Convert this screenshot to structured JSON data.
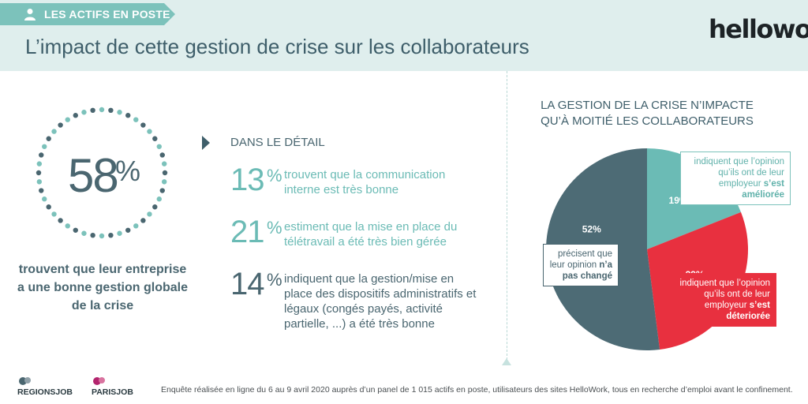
{
  "header": {
    "tab_label": "LES ACTIFS EN POSTE",
    "title": "L’impact de cette gestion de crise sur les collaborateurs",
    "logo": "hellowork"
  },
  "summary": {
    "percent": "58",
    "percent_sign": "%",
    "text": "trouvent que leur entreprise a une bonne gestion globale de la crise"
  },
  "detail": {
    "title": "DANS LE DÉTAIL",
    "items": [
      {
        "value": "13",
        "sign": "%",
        "text": "trouvent que la communication interne est très bonne"
      },
      {
        "value": "21",
        "sign": "%",
        "text": "estiment que la mise en place du télétravail a été très bien gérée"
      },
      {
        "value": "14",
        "sign": "%",
        "text": "indiquent que la gestion/mise en place des dispositifs administratifs et légaux (congés payés, activité partielle, ...) a été très bonne"
      }
    ]
  },
  "chart_data": {
    "type": "pie",
    "title": "LA GESTION DE LA CRISE N’IMPACTE QU’À MOITIÉ LES COLLABORATEURS",
    "slices": [
      {
        "label": "19%",
        "value": 19,
        "color": "#6bbbb5"
      },
      {
        "label": "29%",
        "value": 29,
        "color": "#e8303f"
      },
      {
        "label": "52%",
        "value": 52,
        "color": "#4d6b75"
      }
    ],
    "callouts": [
      {
        "text": "indiquent que l’opinion qu’ils ont de leur employeur",
        "bold": "s’est améliorée"
      },
      {
        "text": "précisent que leur opinion",
        "bold": "n’a pas changé"
      },
      {
        "text": "indiquent que l’opinion qu’ils ont de leur employeur",
        "bold": "s’est déteriorée"
      }
    ]
  },
  "footer": {
    "logos": [
      "REGIONSJOB",
      "PARISJOB"
    ],
    "note": "Enquête réalisée en ligne du 6 au 9 avril 2020 auprès d’un panel de 1 015 actifs en poste, utilisateurs des sites HelloWork, tous en recherche d’emploi avant le confinement."
  },
  "colors": {
    "accent_teal": "#7cc2bb",
    "dark_slate": "#4a6670",
    "red": "#e8303f"
  }
}
